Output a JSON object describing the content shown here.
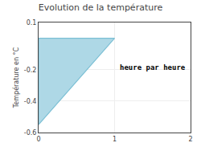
{
  "chart_data": {
    "type": "area",
    "title": "Evolution de la température",
    "y_label": "Température en °C",
    "annotation": "heure par heure",
    "x": [
      0,
      0,
      1,
      0
    ],
    "series": [
      {
        "type": "area",
        "color": "#aed8e6",
        "values": [
          0,
          -0.55,
          0,
          0
        ]
      },
      {
        "type": "line",
        "color": "#7bbfd4",
        "values": [
          0,
          -0.55,
          0,
          0
        ]
      }
    ],
    "xlim": [
      0,
      2
    ],
    "xticks": [
      0,
      1,
      2
    ],
    "ylim": [
      -0.6,
      0.1
    ],
    "yticks": [
      0.1,
      -0.2,
      -0.4,
      -0.6
    ],
    "grid": true
  }
}
